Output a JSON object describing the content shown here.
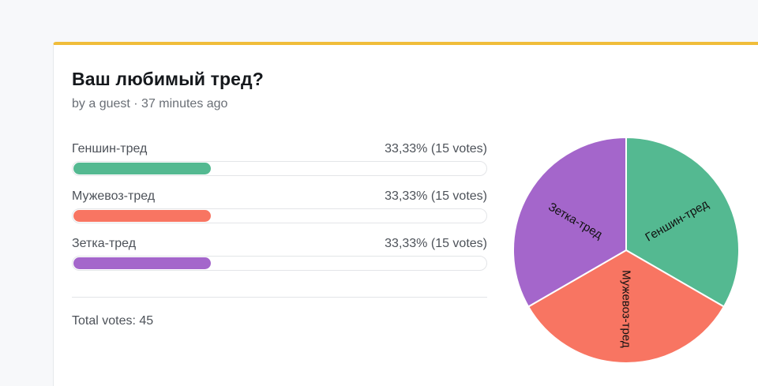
{
  "poll": {
    "title": "Ваш любимый тред?",
    "byline": "by a guest · 37 minutes ago",
    "total_label": "Total votes: 45"
  },
  "colors": {
    "accent_top_border": "#f0bd3a",
    "option_1": "#54b991",
    "option_2": "#f87562",
    "option_3": "#a466cb"
  },
  "chart_data": {
    "type": "pie",
    "categories": [
      "Геншин-тред",
      "Мужевоз-тред",
      "Зетка-тред"
    ],
    "values": [
      15,
      15,
      15
    ],
    "percentages": [
      "33,33%",
      "33,33%",
      "33,33%"
    ],
    "vote_labels": [
      "(15 votes)",
      "(15 votes)",
      "(15 votes)"
    ],
    "colors": [
      "#54b991",
      "#f87562",
      "#a466cb"
    ],
    "total": 45,
    "title": ""
  }
}
